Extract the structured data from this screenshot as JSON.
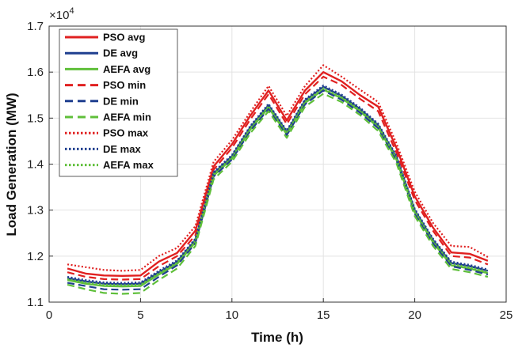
{
  "chart_data": {
    "type": "line",
    "title": "",
    "xlabel": "Time (h)",
    "ylabel": "Load Generation (MW)",
    "y_multiplier_label": "×10",
    "y_multiplier_exp": "4",
    "xlim": [
      0,
      25
    ],
    "ylim": [
      1.1,
      1.7
    ],
    "xticks": [
      0,
      5,
      10,
      15,
      20,
      25
    ],
    "yticks": [
      1.1,
      1.2,
      1.3,
      1.4,
      1.5,
      1.6,
      1.7
    ],
    "grid": true,
    "legend_position": "top-left",
    "x": [
      1,
      2,
      3,
      4,
      5,
      6,
      7,
      8,
      9,
      10,
      11,
      12,
      13,
      14,
      15,
      16,
      17,
      18,
      19,
      20,
      21,
      22,
      23,
      24
    ],
    "series": [
      {
        "name": "PSO avg",
        "color": "#e02020",
        "style": "solid",
        "values": [
          1.173,
          1.162,
          1.158,
          1.157,
          1.158,
          1.188,
          1.207,
          1.255,
          1.395,
          1.443,
          1.505,
          1.56,
          1.495,
          1.56,
          1.6,
          1.58,
          1.55,
          1.525,
          1.435,
          1.33,
          1.262,
          1.208,
          1.205,
          1.19
        ]
      },
      {
        "name": "DE avg",
        "color": "#1f3f8f",
        "style": "solid",
        "values": [
          1.152,
          1.145,
          1.14,
          1.139,
          1.14,
          1.165,
          1.188,
          1.235,
          1.38,
          1.417,
          1.48,
          1.528,
          1.47,
          1.538,
          1.568,
          1.548,
          1.52,
          1.485,
          1.415,
          1.3,
          1.235,
          1.185,
          1.178,
          1.168
        ]
      },
      {
        "name": "AEFA avg",
        "color": "#5fbf3a",
        "style": "solid",
        "values": [
          1.148,
          1.14,
          1.135,
          1.134,
          1.135,
          1.16,
          1.183,
          1.23,
          1.375,
          1.412,
          1.475,
          1.523,
          1.465,
          1.533,
          1.562,
          1.543,
          1.515,
          1.48,
          1.41,
          1.295,
          1.23,
          1.18,
          1.173,
          1.163
        ]
      },
      {
        "name": "PSO min",
        "color": "#e02020",
        "style": "dashed",
        "values": [
          1.165,
          1.155,
          1.15,
          1.149,
          1.15,
          1.178,
          1.2,
          1.245,
          1.388,
          1.435,
          1.497,
          1.552,
          1.487,
          1.552,
          1.59,
          1.572,
          1.542,
          1.515,
          1.425,
          1.322,
          1.255,
          1.2,
          1.197,
          1.182
        ]
      },
      {
        "name": "DE min",
        "color": "#1f3f8f",
        "style": "dashed",
        "values": [
          1.142,
          1.135,
          1.128,
          1.127,
          1.128,
          1.155,
          1.18,
          1.228,
          1.373,
          1.41,
          1.472,
          1.52,
          1.463,
          1.53,
          1.56,
          1.54,
          1.512,
          1.478,
          1.408,
          1.292,
          1.228,
          1.178,
          1.17,
          1.16
        ]
      },
      {
        "name": "AEFA min",
        "color": "#5fbf3a",
        "style": "dashed",
        "values": [
          1.138,
          1.128,
          1.12,
          1.118,
          1.12,
          1.148,
          1.173,
          1.222,
          1.367,
          1.405,
          1.467,
          1.515,
          1.457,
          1.525,
          1.553,
          1.535,
          1.507,
          1.472,
          1.402,
          1.287,
          1.222,
          1.172,
          1.165,
          1.155
        ]
      },
      {
        "name": "PSO max",
        "color": "#e02020",
        "style": "dotted",
        "values": [
          1.182,
          1.176,
          1.17,
          1.168,
          1.17,
          1.2,
          1.218,
          1.265,
          1.405,
          1.452,
          1.513,
          1.57,
          1.505,
          1.57,
          1.615,
          1.59,
          1.562,
          1.535,
          1.445,
          1.34,
          1.272,
          1.222,
          1.22,
          1.198
        ]
      },
      {
        "name": "DE max",
        "color": "#1f3f8f",
        "style": "dotted",
        "values": [
          1.155,
          1.148,
          1.143,
          1.142,
          1.143,
          1.168,
          1.191,
          1.238,
          1.383,
          1.42,
          1.483,
          1.531,
          1.473,
          1.541,
          1.571,
          1.551,
          1.523,
          1.488,
          1.418,
          1.303,
          1.238,
          1.188,
          1.181,
          1.171
        ]
      },
      {
        "name": "AEFA max",
        "color": "#5fbf3a",
        "style": "dotted",
        "values": [
          1.15,
          1.143,
          1.138,
          1.137,
          1.138,
          1.163,
          1.186,
          1.233,
          1.378,
          1.415,
          1.478,
          1.526,
          1.468,
          1.536,
          1.565,
          1.546,
          1.518,
          1.483,
          1.413,
          1.298,
          1.233,
          1.183,
          1.176,
          1.166
        ]
      }
    ]
  }
}
